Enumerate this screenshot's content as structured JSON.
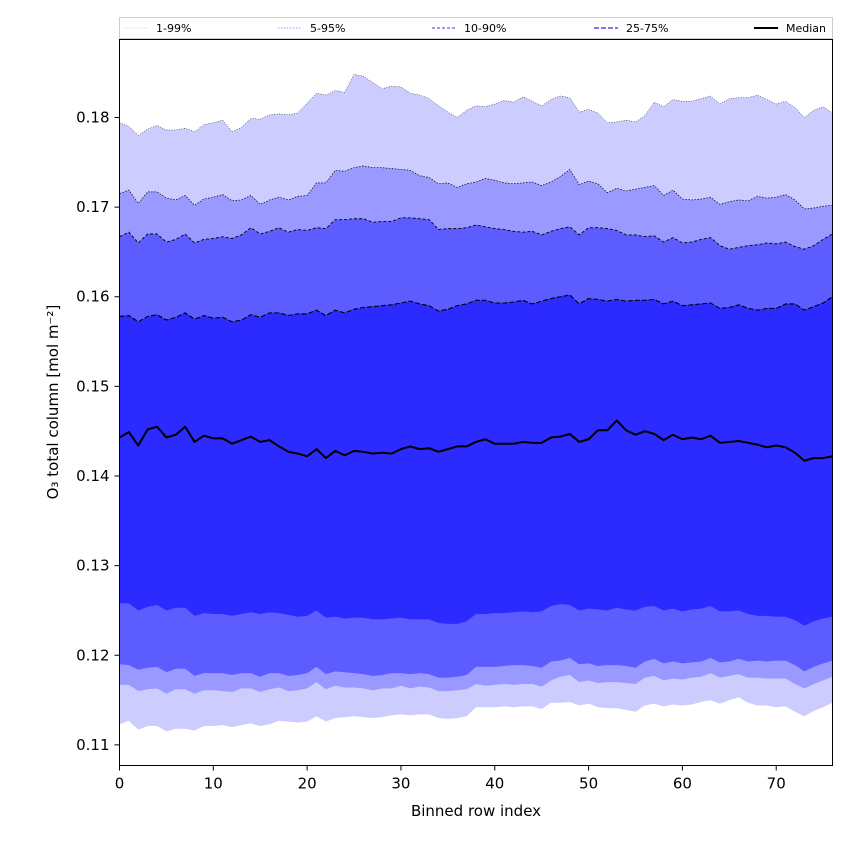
{
  "chart_data": {
    "type": "area",
    "title": "",
    "xlabel": "Binned row index",
    "ylabel": "O₃ total column [mol m⁻²]",
    "xlim": [
      0,
      76
    ],
    "ylim": [
      0.1077,
      0.1887
    ],
    "x_ticks": [
      0,
      10,
      20,
      30,
      40,
      50,
      60,
      70
    ],
    "y_ticks": [
      0.11,
      0.12,
      0.13,
      0.14,
      0.15,
      0.16,
      0.17,
      0.18
    ],
    "y_tick_labels": [
      "0.11",
      "0.12",
      "0.13",
      "0.14",
      "0.15",
      "0.16",
      "0.17",
      "0.18"
    ],
    "legend": {
      "placement": "top, above axes",
      "entries": [
        "1-99%",
        "5-95%",
        "10-90%",
        "25-75%",
        "Median"
      ]
    },
    "colors": {
      "band_1_99": "#ccccff",
      "band_5_95": "#9999ff",
      "band_10_90": "#5c5cff",
      "band_25_75": "#2b2bff",
      "median": "#000000",
      "axis": "#000000"
    },
    "x": [
      0,
      1,
      2,
      3,
      4,
      5,
      6,
      7,
      8,
      9,
      10,
      11,
      12,
      13,
      14,
      15,
      16,
      17,
      18,
      19,
      20,
      21,
      22,
      23,
      24,
      25,
      26,
      27,
      28,
      29,
      30,
      31,
      32,
      33,
      34,
      35,
      36,
      37,
      38,
      39,
      40,
      41,
      42,
      43,
      44,
      45,
      46,
      47,
      48,
      49,
      50,
      51,
      52,
      53,
      54,
      55,
      56,
      57,
      58,
      59,
      60,
      61,
      62,
      63,
      64,
      65,
      66,
      67,
      68,
      69,
      70,
      71,
      72,
      73,
      74,
      75,
      76
    ],
    "series": {
      "p1": [
        0.1123,
        0.1127,
        0.1117,
        0.1121,
        0.1121,
        0.1115,
        0.1118,
        0.1118,
        0.1116,
        0.1121,
        0.1121,
        0.1122,
        0.112,
        0.1122,
        0.1124,
        0.1121,
        0.1123,
        0.1127,
        0.1126,
        0.1125,
        0.1126,
        0.1132,
        0.1126,
        0.113,
        0.1131,
        0.1132,
        0.1131,
        0.113,
        0.1131,
        0.1133,
        0.1134,
        0.1133,
        0.1134,
        0.1134,
        0.113,
        0.1129,
        0.113,
        0.1132,
        0.1142,
        0.1142,
        0.1142,
        0.1143,
        0.1142,
        0.1143,
        0.1143,
        0.114,
        0.1147,
        0.1147,
        0.1148,
        0.1144,
        0.1146,
        0.1142,
        0.1141,
        0.1141,
        0.1139,
        0.1137,
        0.1144,
        0.1146,
        0.1143,
        0.1145,
        0.1144,
        0.1145,
        0.1148,
        0.115,
        0.1146,
        0.115,
        0.1153,
        0.1147,
        0.1144,
        0.1144,
        0.1142,
        0.1143,
        0.1137,
        0.1132,
        0.1138,
        0.1142,
        0.1147
      ],
      "p5": [
        0.1167,
        0.1167,
        0.116,
        0.1162,
        0.1163,
        0.1157,
        0.1162,
        0.1162,
        0.1157,
        0.1161,
        0.1161,
        0.116,
        0.1159,
        0.1163,
        0.1163,
        0.1159,
        0.1162,
        0.1164,
        0.116,
        0.1161,
        0.1163,
        0.117,
        0.1162,
        0.1166,
        0.1164,
        0.1164,
        0.1163,
        0.1161,
        0.1163,
        0.1163,
        0.1166,
        0.1163,
        0.1165,
        0.1164,
        0.116,
        0.116,
        0.1161,
        0.1162,
        0.1168,
        0.1166,
        0.1167,
        0.1168,
        0.1167,
        0.1168,
        0.1168,
        0.1165,
        0.1172,
        0.1176,
        0.1178,
        0.117,
        0.1172,
        0.1169,
        0.117,
        0.117,
        0.1169,
        0.1168,
        0.1175,
        0.1177,
        0.1172,
        0.1174,
        0.1173,
        0.1175,
        0.1176,
        0.118,
        0.1175,
        0.1177,
        0.1179,
        0.1175,
        0.1175,
        0.1174,
        0.1174,
        0.1174,
        0.1168,
        0.1163,
        0.1168,
        0.1172,
        0.1176
      ],
      "p10": [
        0.119,
        0.1189,
        0.1184,
        0.1186,
        0.1187,
        0.1181,
        0.1185,
        0.1185,
        0.1177,
        0.118,
        0.118,
        0.118,
        0.1178,
        0.118,
        0.118,
        0.1176,
        0.118,
        0.118,
        0.1177,
        0.1178,
        0.118,
        0.1187,
        0.1179,
        0.1182,
        0.1181,
        0.118,
        0.1179,
        0.1177,
        0.1178,
        0.118,
        0.118,
        0.1179,
        0.118,
        0.1179,
        0.1175,
        0.1175,
        0.1176,
        0.1178,
        0.1187,
        0.1187,
        0.1187,
        0.1188,
        0.1189,
        0.1189,
        0.1188,
        0.1186,
        0.1193,
        0.1194,
        0.1197,
        0.119,
        0.1191,
        0.1188,
        0.1189,
        0.1189,
        0.1188,
        0.1186,
        0.1193,
        0.1196,
        0.1191,
        0.1193,
        0.1191,
        0.1192,
        0.1193,
        0.1197,
        0.1192,
        0.1193,
        0.1196,
        0.1193,
        0.1194,
        0.1193,
        0.1194,
        0.1194,
        0.1189,
        0.1182,
        0.1187,
        0.1191,
        0.1194
      ],
      "p25": [
        0.1258,
        0.1258,
        0.125,
        0.1254,
        0.1256,
        0.125,
        0.1253,
        0.1253,
        0.1244,
        0.1247,
        0.1246,
        0.1246,
        0.1244,
        0.1246,
        0.1248,
        0.1246,
        0.1248,
        0.1247,
        0.1245,
        0.1243,
        0.1244,
        0.125,
        0.1242,
        0.1243,
        0.1241,
        0.1242,
        0.1242,
        0.124,
        0.124,
        0.1241,
        0.1242,
        0.124,
        0.124,
        0.124,
        0.1236,
        0.1235,
        0.1235,
        0.1238,
        0.1246,
        0.1246,
        0.1247,
        0.1247,
        0.1248,
        0.1249,
        0.1248,
        0.1249,
        0.1255,
        0.1257,
        0.1256,
        0.125,
        0.1252,
        0.1251,
        0.125,
        0.1253,
        0.1251,
        0.125,
        0.1254,
        0.1255,
        0.125,
        0.1252,
        0.1249,
        0.1251,
        0.1252,
        0.1255,
        0.1249,
        0.1249,
        0.125,
        0.1246,
        0.1244,
        0.1244,
        0.1243,
        0.1243,
        0.1239,
        0.1233,
        0.1238,
        0.1241,
        0.1243
      ],
      "median": [
        0.1443,
        0.1449,
        0.1434,
        0.1452,
        0.1455,
        0.1443,
        0.1446,
        0.1455,
        0.1438,
        0.1445,
        0.1442,
        0.1442,
        0.1436,
        0.144,
        0.1444,
        0.1438,
        0.144,
        0.1433,
        0.1427,
        0.1425,
        0.1422,
        0.143,
        0.142,
        0.1428,
        0.1423,
        0.1428,
        0.1427,
        0.1425,
        0.1426,
        0.1425,
        0.143,
        0.1433,
        0.143,
        0.1431,
        0.1427,
        0.143,
        0.1433,
        0.1433,
        0.1438,
        0.1441,
        0.1436,
        0.1436,
        0.1436,
        0.1438,
        0.1437,
        0.1437,
        0.1443,
        0.1444,
        0.1447,
        0.1438,
        0.1441,
        0.1451,
        0.1451,
        0.1462,
        0.1451,
        0.1446,
        0.145,
        0.1447,
        0.144,
        0.1446,
        0.1441,
        0.1443,
        0.1441,
        0.1445,
        0.1437,
        0.1438,
        0.1439,
        0.1437,
        0.1435,
        0.1432,
        0.1434,
        0.1432,
        0.1426,
        0.1417,
        0.142,
        0.142,
        0.1422
      ],
      "p75": [
        0.1578,
        0.1579,
        0.1572,
        0.1578,
        0.158,
        0.1574,
        0.1577,
        0.1582,
        0.1575,
        0.1579,
        0.1576,
        0.1577,
        0.1572,
        0.1574,
        0.158,
        0.1577,
        0.1582,
        0.1582,
        0.1579,
        0.1581,
        0.1581,
        0.1585,
        0.1579,
        0.1585,
        0.1582,
        0.1586,
        0.1588,
        0.1589,
        0.159,
        0.1591,
        0.1593,
        0.1595,
        0.1592,
        0.159,
        0.1584,
        0.1586,
        0.159,
        0.1592,
        0.1596,
        0.1596,
        0.1593,
        0.1593,
        0.1594,
        0.1596,
        0.1592,
        0.1595,
        0.1598,
        0.16,
        0.1602,
        0.1592,
        0.1598,
        0.1597,
        0.1595,
        0.1597,
        0.1595,
        0.1596,
        0.1596,
        0.1597,
        0.1592,
        0.1595,
        0.159,
        0.1591,
        0.1592,
        0.1593,
        0.1587,
        0.1588,
        0.1591,
        0.1587,
        0.1585,
        0.1587,
        0.1587,
        0.1592,
        0.1592,
        0.1585,
        0.1589,
        0.1593,
        0.16
      ],
      "p90": [
        0.1667,
        0.1672,
        0.166,
        0.167,
        0.167,
        0.1661,
        0.1664,
        0.167,
        0.166,
        0.1664,
        0.1665,
        0.1667,
        0.1665,
        0.1669,
        0.1677,
        0.167,
        0.1673,
        0.1677,
        0.1672,
        0.1675,
        0.1674,
        0.1677,
        0.1676,
        0.1686,
        0.1686,
        0.1687,
        0.1687,
        0.1683,
        0.1684,
        0.1684,
        0.1688,
        0.1688,
        0.1687,
        0.1686,
        0.1675,
        0.1676,
        0.1676,
        0.1677,
        0.168,
        0.1678,
        0.1676,
        0.1675,
        0.1673,
        0.1672,
        0.1673,
        0.1669,
        0.1673,
        0.1676,
        0.1678,
        0.1669,
        0.1677,
        0.1677,
        0.1676,
        0.1674,
        0.1669,
        0.1669,
        0.1667,
        0.1668,
        0.1661,
        0.1666,
        0.166,
        0.1661,
        0.1664,
        0.1666,
        0.1657,
        0.1653,
        0.1655,
        0.1657,
        0.1658,
        0.166,
        0.1659,
        0.1661,
        0.1656,
        0.1653,
        0.1657,
        0.1664,
        0.167
      ],
      "p95": [
        0.1715,
        0.1719,
        0.1704,
        0.1717,
        0.1717,
        0.171,
        0.1708,
        0.1713,
        0.1702,
        0.1709,
        0.1711,
        0.1714,
        0.1707,
        0.1708,
        0.1713,
        0.1703,
        0.1708,
        0.1711,
        0.1708,
        0.1712,
        0.1713,
        0.1727,
        0.1727,
        0.1741,
        0.174,
        0.1744,
        0.1746,
        0.1744,
        0.1744,
        0.1743,
        0.1742,
        0.1741,
        0.1735,
        0.1733,
        0.1726,
        0.1727,
        0.1722,
        0.1726,
        0.1728,
        0.1732,
        0.173,
        0.1727,
        0.1726,
        0.1727,
        0.1728,
        0.1724,
        0.1728,
        0.1734,
        0.1742,
        0.1725,
        0.1729,
        0.1726,
        0.1716,
        0.1721,
        0.1718,
        0.172,
        0.1722,
        0.1724,
        0.1713,
        0.1719,
        0.1709,
        0.1708,
        0.1709,
        0.1711,
        0.1703,
        0.1706,
        0.1708,
        0.1707,
        0.1712,
        0.171,
        0.1711,
        0.1714,
        0.1708,
        0.1698,
        0.1699,
        0.1701,
        0.1702
      ],
      "p99": [
        0.1794,
        0.179,
        0.178,
        0.1787,
        0.1791,
        0.1786,
        0.1786,
        0.1788,
        0.1784,
        0.1792,
        0.1794,
        0.1797,
        0.1784,
        0.1789,
        0.1799,
        0.1798,
        0.1803,
        0.1804,
        0.1803,
        0.1805,
        0.1816,
        0.1827,
        0.1825,
        0.183,
        0.1828,
        0.1848,
        0.1846,
        0.1839,
        0.1832,
        0.1835,
        0.1834,
        0.1827,
        0.1825,
        0.1821,
        0.1813,
        0.1806,
        0.18,
        0.1808,
        0.1813,
        0.1812,
        0.1815,
        0.1819,
        0.1817,
        0.1823,
        0.1818,
        0.1813,
        0.182,
        0.1824,
        0.1822,
        0.1806,
        0.1809,
        0.1805,
        0.1794,
        0.1795,
        0.1797,
        0.1795,
        0.1802,
        0.1817,
        0.1812,
        0.182,
        0.1818,
        0.1818,
        0.1821,
        0.1824,
        0.1815,
        0.1821,
        0.1822,
        0.1822,
        0.1825,
        0.182,
        0.1815,
        0.1818,
        0.1811,
        0.18,
        0.1808,
        0.1812,
        0.1805
      ]
    }
  }
}
